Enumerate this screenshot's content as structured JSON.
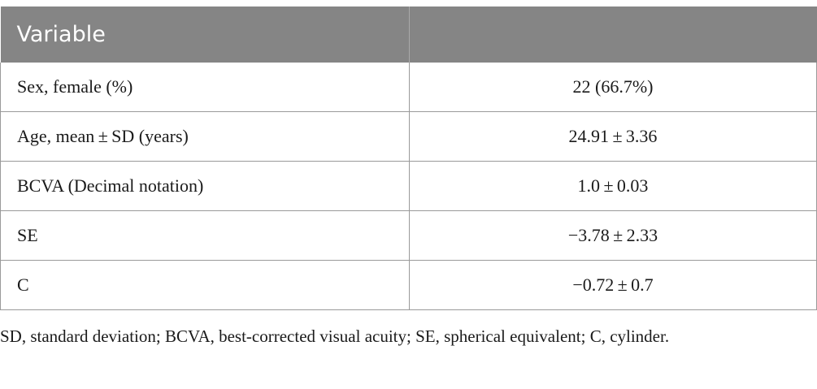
{
  "table": {
    "headers": [
      "Variable",
      ""
    ],
    "rows": [
      {
        "variable": "Sex, female (%)",
        "value": "22 (66.7%)"
      },
      {
        "variable": "Age, mean ± SD (years)",
        "value": "24.91 ± 3.36"
      },
      {
        "variable": "BCVA (Decimal notation)",
        "value": "1.0 ± 0.03"
      },
      {
        "variable": "SE",
        "value": "−3.78 ± 2.33"
      },
      {
        "variable": "C",
        "value": "−0.72 ± 0.7"
      }
    ]
  },
  "footnote": "SD, standard deviation; BCVA, best-corrected visual acuity; SE, spherical equivalent; C, cylinder.",
  "colors": {
    "header_bg": "#858585",
    "header_text": "#ffffff",
    "rule": "#9a9a9a"
  }
}
